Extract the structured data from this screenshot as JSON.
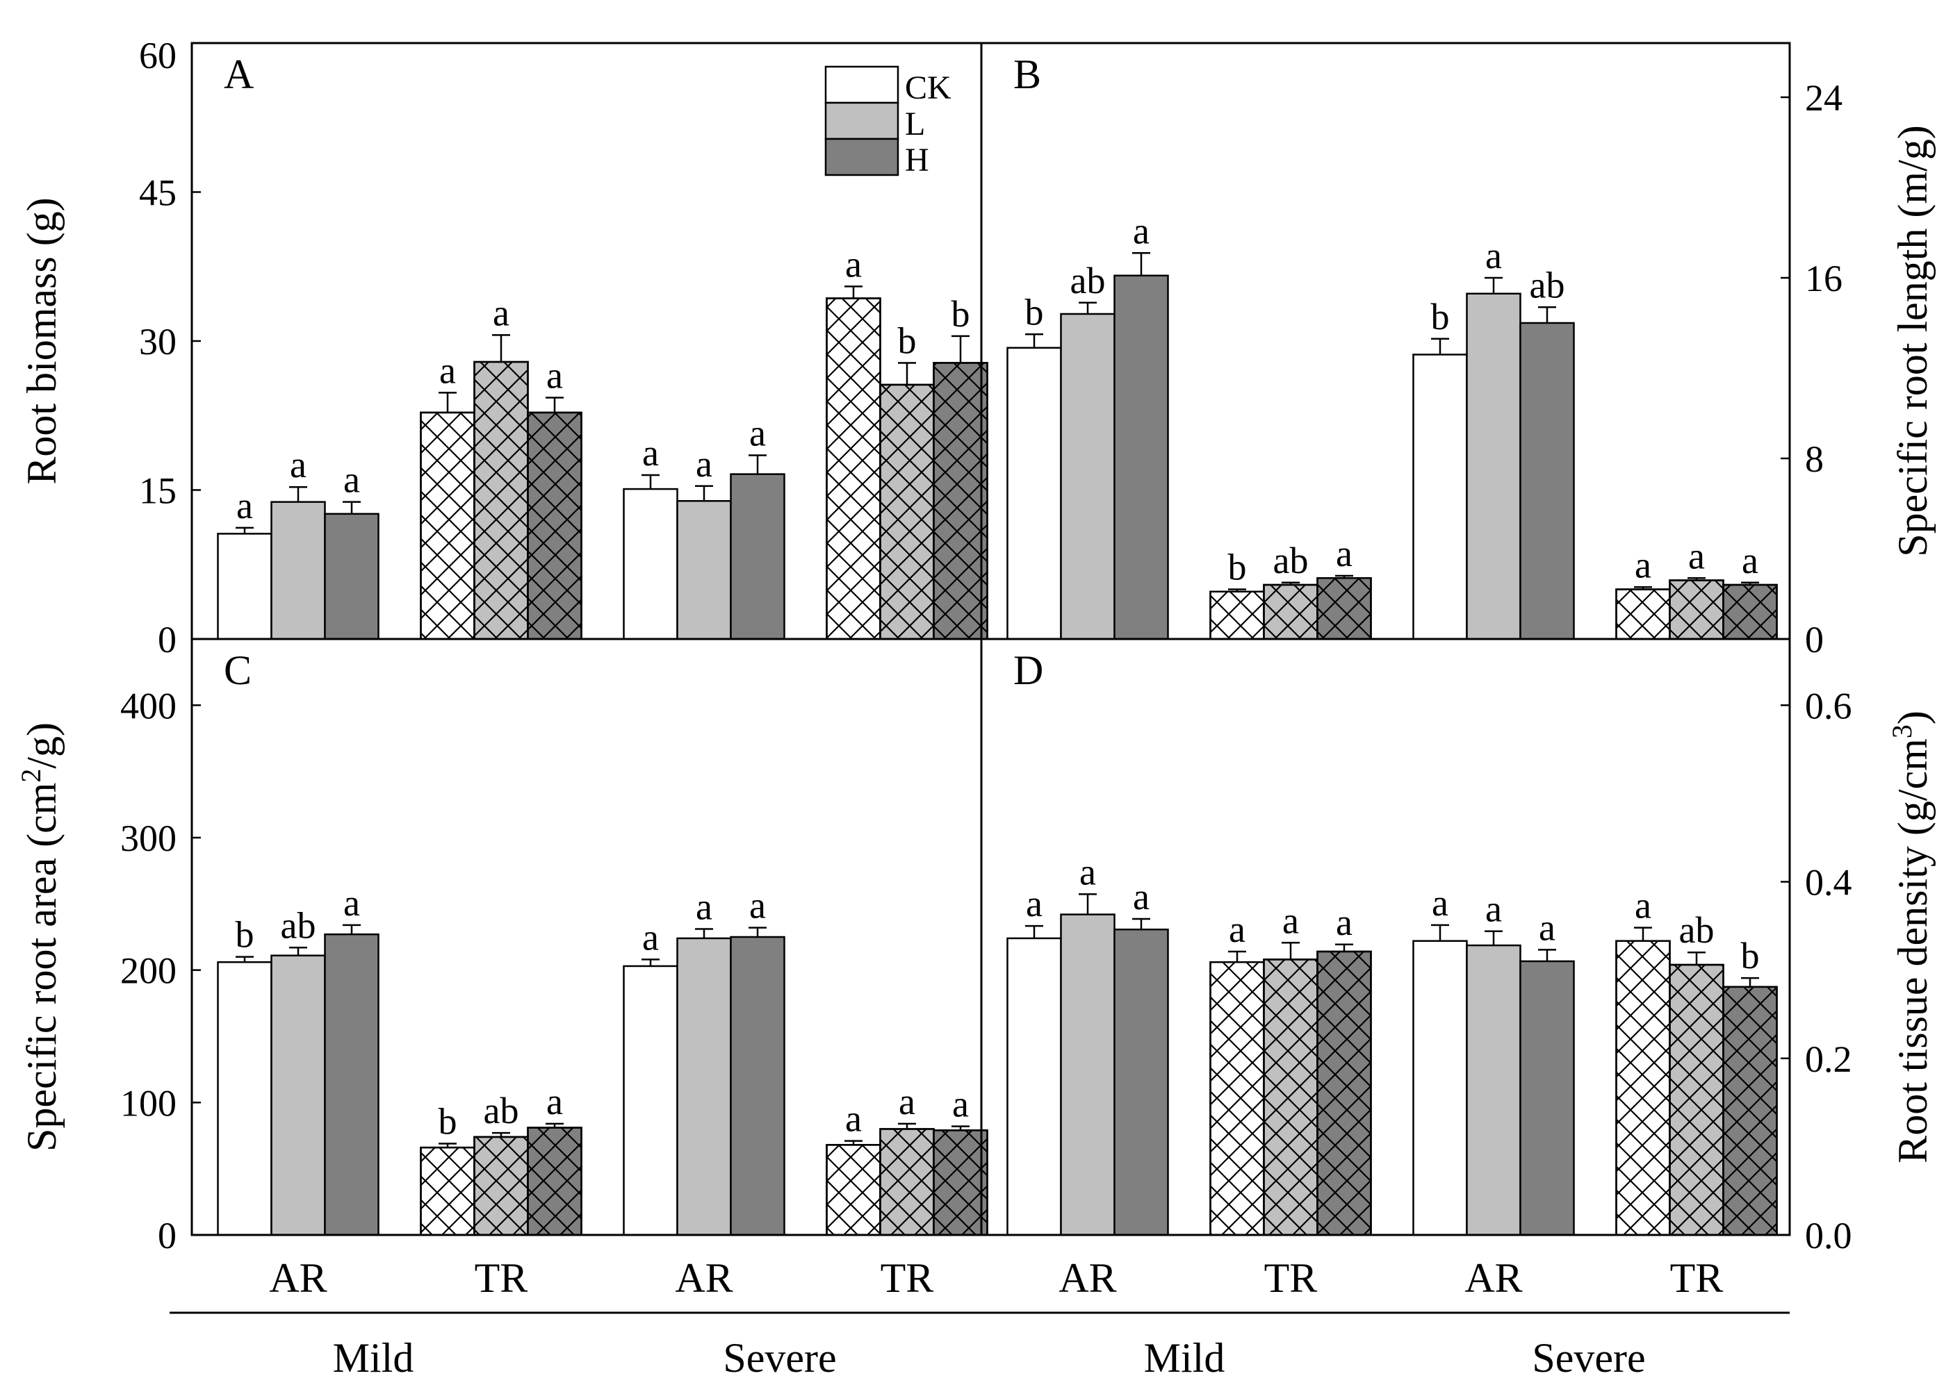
{
  "chart_data": [
    {
      "id": "A",
      "type": "bar",
      "panel_label": "A",
      "y_axis_side": "left",
      "ylabel": "Root biomass (g)",
      "ylim": [
        0,
        60
      ],
      "yticks": [
        0,
        15,
        30,
        45,
        60
      ],
      "tick_labels": [
        "0",
        "15",
        "30",
        "45",
        "60"
      ],
      "categories": [
        "Mild AR",
        "Mild TR",
        "Severe AR",
        "Severe TR"
      ],
      "series": [
        {
          "name": "CK",
          "values": [
            10.6,
            22.8,
            15.1,
            34.3
          ],
          "errors": [
            0.6,
            2.0,
            1.4,
            1.2
          ],
          "letters": [
            "a",
            "a",
            "a",
            "a"
          ]
        },
        {
          "name": "L",
          "values": [
            13.8,
            27.9,
            13.9,
            25.6
          ],
          "errors": [
            1.5,
            2.7,
            1.5,
            2.2
          ],
          "letters": [
            "a",
            "a",
            "a",
            "b"
          ]
        },
        {
          "name": "H",
          "values": [
            12.6,
            22.8,
            16.6,
            27.8
          ],
          "errors": [
            1.2,
            1.5,
            1.9,
            2.7
          ],
          "letters": [
            "a",
            "a",
            "a",
            "b"
          ]
        }
      ]
    },
    {
      "id": "B",
      "type": "bar",
      "panel_label": "B",
      "y_axis_side": "right",
      "ylabel": "Specific root length (m/g)",
      "ylim": [
        0,
        26.4
      ],
      "yticks": [
        0,
        8,
        16,
        24
      ],
      "tick_labels": [
        "0",
        "8",
        "16",
        "24"
      ],
      "categories": [
        "Mild AR",
        "Mild TR",
        "Severe AR",
        "Severe TR"
      ],
      "series": [
        {
          "name": "CK",
          "values": [
            12.9,
            2.1,
            12.6,
            2.2
          ],
          "errors": [
            0.6,
            0.1,
            0.7,
            0.1
          ],
          "letters": [
            "b",
            "b",
            "b",
            "a"
          ]
        },
        {
          "name": "L",
          "values": [
            14.4,
            2.4,
            15.3,
            2.6
          ],
          "errors": [
            0.5,
            0.1,
            0.7,
            0.1
          ],
          "letters": [
            "ab",
            "ab",
            "a",
            "a"
          ]
        },
        {
          "name": "H",
          "values": [
            16.1,
            2.7,
            14.0,
            2.4
          ],
          "errors": [
            1.0,
            0.1,
            0.7,
            0.1
          ],
          "letters": [
            "a",
            "a",
            "ab",
            "a"
          ]
        }
      ]
    },
    {
      "id": "C",
      "type": "bar",
      "panel_label": "C",
      "y_axis_side": "left",
      "ylabel": "Specific root area (cm",
      "ylabel_sup": "2",
      "ylabel_suffix": "/g)",
      "ylim": [
        0,
        450
      ],
      "yticks": [
        0,
        100,
        200,
        300,
        400
      ],
      "tick_labels": [
        "0",
        "100",
        "200",
        "300",
        "400"
      ],
      "categories": [
        "Mild AR",
        "Mild TR",
        "Severe AR",
        "Severe TR"
      ],
      "series": [
        {
          "name": "CK",
          "values": [
            206,
            66,
            203,
            68
          ],
          "errors": [
            4,
            3,
            5,
            3
          ],
          "letters": [
            "b",
            "b",
            "a",
            "a"
          ]
        },
        {
          "name": "L",
          "values": [
            211,
            74,
            224,
            80
          ],
          "errors": [
            6,
            3,
            7,
            4
          ],
          "letters": [
            "ab",
            "ab",
            "a",
            "a"
          ]
        },
        {
          "name": "H",
          "values": [
            227,
            81,
            225,
            79
          ],
          "errors": [
            7,
            3,
            7,
            3
          ],
          "letters": [
            "a",
            "a",
            "a",
            "a"
          ]
        }
      ]
    },
    {
      "id": "D",
      "type": "bar",
      "panel_label": "D",
      "y_axis_side": "right",
      "ylabel": "Root tissue density (g/cm",
      "ylabel_sup": "3",
      "ylabel_suffix": ")",
      "ylim": [
        0,
        0.675
      ],
      "yticks": [
        0.0,
        0.2,
        0.4,
        0.6
      ],
      "tick_labels": [
        "0.0",
        "0.2",
        "0.4",
        "0.6"
      ],
      "categories": [
        "Mild AR",
        "Mild TR",
        "Severe AR",
        "Severe TR"
      ],
      "series": [
        {
          "name": "CK",
          "values": [
            0.336,
            0.309,
            0.333,
            0.333
          ],
          "errors": [
            0.014,
            0.012,
            0.018,
            0.015
          ],
          "letters": [
            "a",
            "a",
            "a",
            "a"
          ]
        },
        {
          "name": "L",
          "values": [
            0.363,
            0.312,
            0.328,
            0.306
          ],
          "errors": [
            0.023,
            0.019,
            0.016,
            0.014
          ],
          "letters": [
            "a",
            "a",
            "a",
            "ab"
          ]
        },
        {
          "name": "H",
          "values": [
            0.346,
            0.321,
            0.31,
            0.281
          ],
          "errors": [
            0.012,
            0.008,
            0.013,
            0.01
          ],
          "letters": [
            "a",
            "a",
            "a",
            "b"
          ]
        }
      ]
    }
  ],
  "legend": {
    "entries": [
      {
        "name": "CK",
        "color": "#ffffff"
      },
      {
        "name": "L",
        "color": "#c0c0c0"
      },
      {
        "name": "H",
        "color": "#808080"
      }
    ]
  },
  "series_colors": {
    "CK": "#ffffff",
    "L": "#c0c0c0",
    "H": "#808080"
  },
  "x_tick_labels": [
    "AR",
    "TR",
    "AR",
    "TR"
  ],
  "group_labels": [
    "Mild",
    "Severe",
    "Mild",
    "Severe"
  ],
  "hatched_categories": [
    "Mild TR",
    "Severe TR"
  ]
}
